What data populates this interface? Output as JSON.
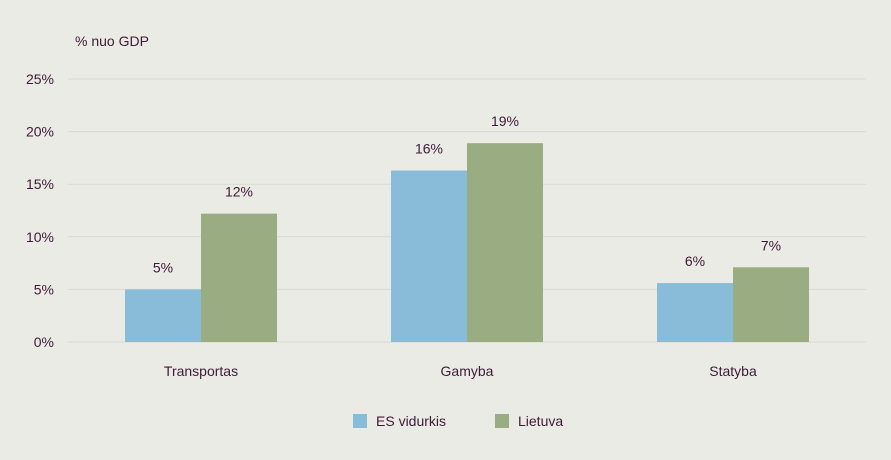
{
  "chart_data": {
    "type": "bar",
    "ylabel": "% nuo GDP",
    "categories": [
      "Transportas",
      "Gamyba",
      "Statyba"
    ],
    "series": [
      {
        "name": "ES vidurkis",
        "values": [
          5,
          16.3,
          5.6
        ],
        "labels": [
          "5%",
          "16%",
          "6%"
        ],
        "color": "#88bcd9"
      },
      {
        "name": "Lietuva",
        "values": [
          12.2,
          18.9,
          7.1
        ],
        "labels": [
          "12%",
          "19%",
          "7%"
        ],
        "color": "#9aad82"
      }
    ],
    "ylim": [
      0,
      25
    ],
    "yticks": [
      0,
      5,
      10,
      15,
      20,
      25
    ],
    "ytick_labels": [
      "0%",
      "5%",
      "10%",
      "15%",
      "20%",
      "25%"
    ],
    "grid": true,
    "legend": "bottom-center"
  },
  "colors": {
    "background": "#ebebe6",
    "text": "#3d1a36",
    "grid": "#d9d9d3"
  }
}
